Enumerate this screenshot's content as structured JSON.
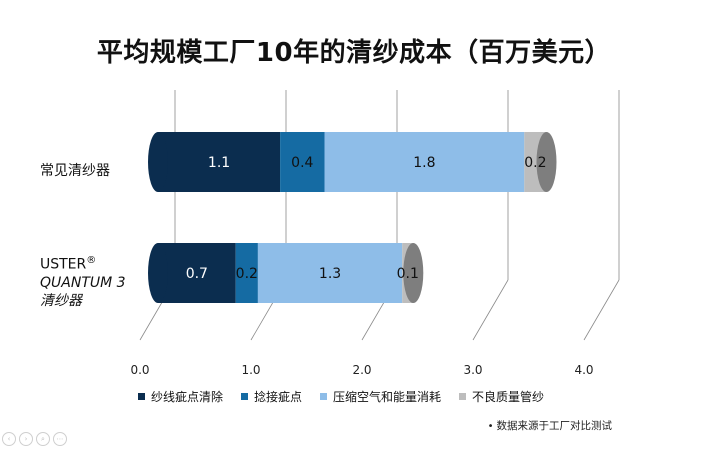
{
  "title": "平均规模工厂10年的清纱成本（百万美元）",
  "chart_data": {
    "type": "bar",
    "orientation": "horizontal",
    "stacked": true,
    "style": "3d-cylinder",
    "title": "平均规模工厂10年的清纱成本（百万美元）",
    "categories": [
      "常见清纱器",
      "USTER® QUANTUM 3 清纱器"
    ],
    "category_label_lines": [
      [
        {
          "text": "常见清纱器",
          "italic": false
        }
      ],
      [
        {
          "text": "USTER",
          "italic": false,
          "sup": "®"
        },
        {
          "text": "QUANTUM 3",
          "italic": true
        },
        {
          "text": "清纱器",
          "italic": true
        }
      ]
    ],
    "series": [
      {
        "name": "纱线疵点清除",
        "color": "#0b2d4f",
        "values": [
          1.1,
          0.7
        ]
      },
      {
        "name": "捻接疵点",
        "color": "#156ba3",
        "values": [
          0.4,
          0.2
        ]
      },
      {
        "name": "压缩空气和能量消耗",
        "color": "#8ebde8",
        "values": [
          1.8,
          1.3
        ]
      },
      {
        "name": "不良质量管纱",
        "color": "#bdbdbd",
        "values": [
          0.2,
          0.1
        ]
      }
    ],
    "data_labels": [
      [
        "1.1",
        "0.4",
        "1.8",
        "0.2"
      ],
      [
        "0.7",
        "0.2",
        "1.3",
        "0.1"
      ]
    ],
    "xlim": [
      0,
      4
    ],
    "xticks": [
      "0.0",
      "1.0",
      "2.0",
      "3.0",
      "4.0"
    ],
    "grid": true,
    "legend_position": "bottom"
  },
  "note": "数据来源于工厂对比测试",
  "toolbar_icons": [
    "prev-icon",
    "next-icon",
    "zoom-icon",
    "more-icon"
  ]
}
